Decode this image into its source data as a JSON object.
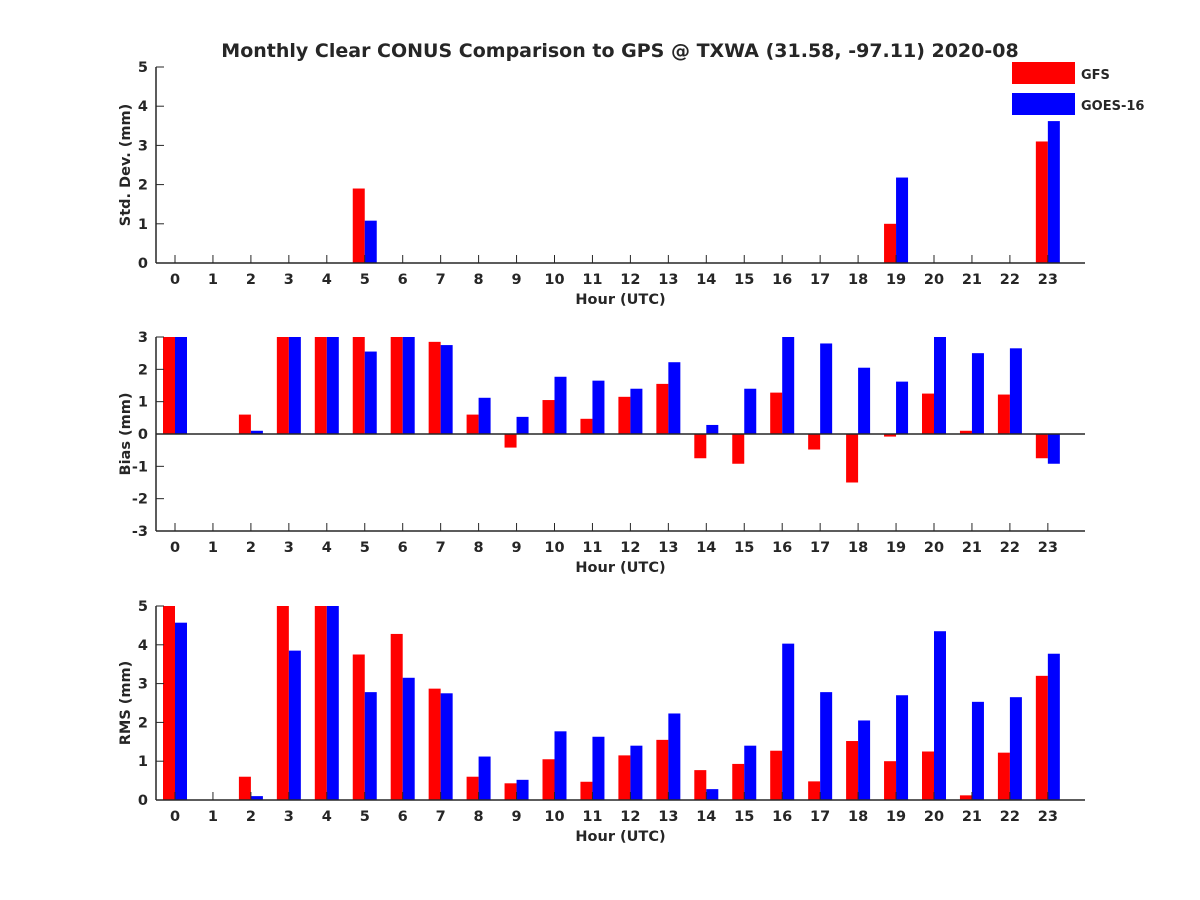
{
  "title": "Monthly Clear CONUS Comparison to GPS @ TXWA (31.58, -97.11) 2020-08",
  "legend": {
    "position": "top-right",
    "entries": [
      {
        "name": "GFS",
        "color": "#ff0000"
      },
      {
        "name": "GOES-16",
        "color": "#0000ff"
      }
    ]
  },
  "chart_data": [
    {
      "type": "bar",
      "xlabel": "Hour (UTC)",
      "ylabel": "Std. Dev. (mm)",
      "ylim": [
        0,
        5
      ],
      "yticks": [
        0,
        1,
        2,
        3,
        4,
        5
      ],
      "categories": [
        "0",
        "1",
        "2",
        "3",
        "4",
        "5",
        "6",
        "7",
        "8",
        "9",
        "10",
        "11",
        "12",
        "13",
        "14",
        "15",
        "16",
        "17",
        "18",
        "19",
        "20",
        "21",
        "22",
        "23"
      ],
      "series": [
        {
          "name": "GFS",
          "color": "#ff0000",
          "values": [
            0,
            0,
            0,
            0,
            0,
            1.9,
            0,
            0,
            0,
            0,
            0,
            0,
            0,
            0,
            0,
            0,
            0,
            0,
            0,
            1.0,
            0,
            0,
            0,
            3.1
          ]
        },
        {
          "name": "GOES-16",
          "color": "#0000ff",
          "values": [
            0,
            0,
            0,
            0,
            0,
            1.08,
            0,
            0,
            0,
            0,
            0,
            0,
            0,
            0,
            0,
            0,
            0,
            0,
            0,
            2.18,
            0,
            0,
            0,
            3.62
          ]
        }
      ]
    },
    {
      "type": "bar",
      "xlabel": "Hour (UTC)",
      "ylabel": "Bias (mm)",
      "ylim": [
        -3,
        3
      ],
      "yticks": [
        -3,
        -2,
        -1,
        0,
        1,
        2,
        3
      ],
      "categories": [
        "0",
        "1",
        "2",
        "3",
        "4",
        "5",
        "6",
        "7",
        "8",
        "9",
        "10",
        "11",
        "12",
        "13",
        "14",
        "15",
        "16",
        "17",
        "18",
        "19",
        "20",
        "21",
        "22",
        "23"
      ],
      "series": [
        {
          "name": "GFS",
          "color": "#ff0000",
          "values": [
            3,
            0,
            0.6,
            3,
            3,
            3,
            3,
            2.85,
            0.6,
            -0.42,
            1.05,
            0.47,
            1.15,
            1.55,
            -0.75,
            -0.92,
            1.28,
            -0.48,
            -1.5,
            -0.08,
            1.25,
            0.1,
            1.22,
            -0.75
          ]
        },
        {
          "name": "GOES-16",
          "color": "#0000ff",
          "values": [
            3,
            0,
            0.1,
            3,
            3,
            2.55,
            3,
            2.75,
            1.12,
            0.53,
            1.77,
            1.65,
            1.4,
            2.22,
            0.28,
            1.4,
            3,
            2.8,
            2.05,
            1.62,
            3,
            2.5,
            2.65,
            -0.92
          ]
        }
      ]
    },
    {
      "type": "bar",
      "xlabel": "Hour (UTC)",
      "ylabel": "RMS (mm)",
      "ylim": [
        0,
        5
      ],
      "yticks": [
        0,
        1,
        2,
        3,
        4,
        5
      ],
      "categories": [
        "0",
        "1",
        "2",
        "3",
        "4",
        "5",
        "6",
        "7",
        "8",
        "9",
        "10",
        "11",
        "12",
        "13",
        "14",
        "15",
        "16",
        "17",
        "18",
        "19",
        "20",
        "21",
        "22",
        "23"
      ],
      "series": [
        {
          "name": "GFS",
          "color": "#ff0000",
          "values": [
            5,
            0,
            0.6,
            5,
            5,
            3.75,
            4.28,
            2.87,
            0.6,
            0.43,
            1.05,
            0.47,
            1.15,
            1.55,
            0.77,
            0.93,
            1.27,
            0.48,
            1.52,
            1.0,
            1.25,
            0.12,
            1.22,
            3.2
          ]
        },
        {
          "name": "GOES-16",
          "color": "#0000ff",
          "values": [
            4.57,
            0,
            0.1,
            3.85,
            5,
            2.78,
            3.15,
            2.75,
            1.12,
            0.52,
            1.77,
            1.63,
            1.4,
            2.23,
            0.28,
            1.4,
            4.03,
            2.78,
            2.05,
            2.7,
            4.35,
            2.53,
            2.65,
            3.77
          ]
        }
      ]
    }
  ]
}
